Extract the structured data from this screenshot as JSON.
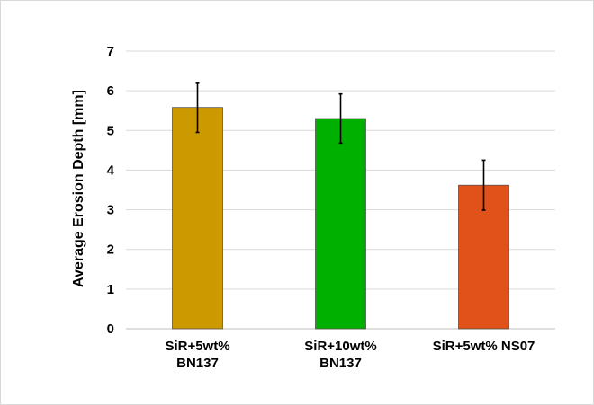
{
  "chart_data": {
    "type": "bar",
    "title": "",
    "xlabel": "",
    "ylabel": "Average Erosion Depth [mm]",
    "ylim": [
      0,
      7
    ],
    "yticks": [
      0,
      1,
      2,
      3,
      4,
      5,
      6,
      7
    ],
    "grid": true,
    "categories": [
      [
        "SiR+5wt%",
        "BN137"
      ],
      [
        "SiR+10wt%",
        "BN137"
      ],
      [
        "SiR+5wt% NS07"
      ]
    ],
    "values": [
      5.58,
      5.3,
      3.62
    ],
    "error": [
      0.63,
      0.62,
      0.63
    ],
    "colors": [
      "#cc9900",
      "#00b000",
      "#e0521a"
    ]
  }
}
